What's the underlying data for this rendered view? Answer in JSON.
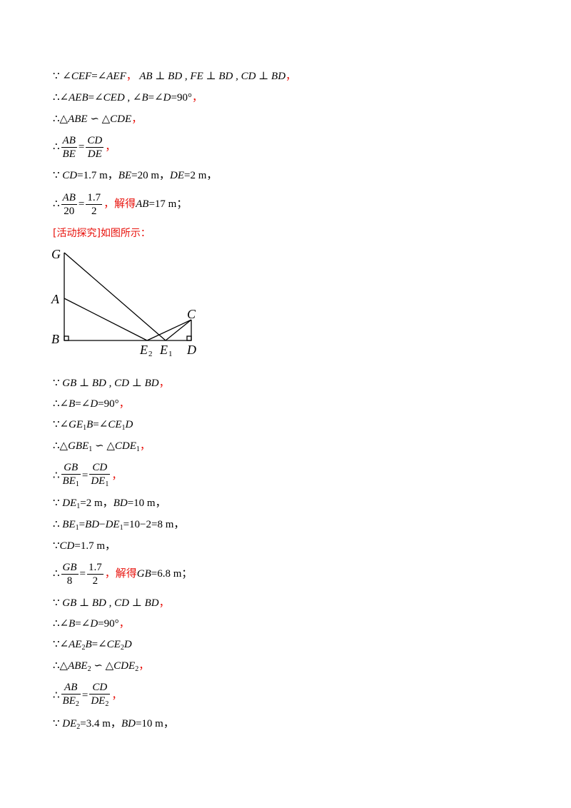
{
  "sec1": {
    "l1": {
      "a": "∵ ",
      "b": "∠CEF",
      "c": "=",
      "d": "∠AEF",
      "e": "，",
      "f": " AB ⊥ BD , FE ⊥ BD , CD ⊥ BD",
      "g": "，"
    },
    "l2": {
      "a": "∴",
      "b": "∠AEB",
      "c": "=",
      "d": "∠CED",
      "e": " , ",
      "f": "∠B",
      "g": "=",
      "h": "∠D",
      "i": "=90°",
      "j": "，"
    },
    "l3": {
      "a": "∴",
      "b": "△ABE ∽ △CDE",
      "c": "，"
    },
    "l4": {
      "a": "∴",
      "n1": "AB",
      "d1": "BE",
      "eq": "=",
      "n2": "CD",
      "d2": "DE",
      "c": "，"
    },
    "l5": {
      "a": "∵ ",
      "b": "CD",
      "c": "=1.7 m，",
      "d": "BE",
      "e": "=20 m，",
      "f": "DE",
      "g": "=2 m，"
    },
    "l6": {
      "a": "∴",
      "n1": "AB",
      "d1": "20",
      "eq": "=",
      "n2": "1.7",
      "d2": "2",
      "c": "，解得",
      "d": "AB",
      "e": "=17 m；"
    }
  },
  "heading": "[活动探究]如图所示：",
  "figure": {
    "labels": {
      "G": "G",
      "A": "A",
      "B": "B",
      "C": "C",
      "D": "D",
      "E2": "E",
      "E2sub": "2",
      "E1": "E",
      "E1sub": "1"
    }
  },
  "sec2": {
    "l1": {
      "a": "∵ ",
      "b": "GB ⊥ BD , CD ⊥ BD",
      "c": "，"
    },
    "l2": {
      "a": "∴",
      "b": "∠B",
      "c": "=",
      "d": "∠D",
      "e": "=90°",
      "f": "，"
    },
    "l3": {
      "a": "∵",
      "b": "∠GE",
      "s1": "1",
      "c": "B",
      "d": "=",
      "e": "∠CE",
      "s2": "1",
      "f": "D"
    },
    "l4": {
      "a": "∴",
      "b": "△GBE",
      "s1": "1",
      "c": " ∽ △CDE",
      "s2": "1",
      "d": "，"
    },
    "l5": {
      "a": "∴",
      "n1": "GB",
      "d1": "BE",
      "s1": "1",
      "eq": "=",
      "n2": "CD",
      "d2": "DE",
      "s2": "1",
      "c": "，"
    },
    "l6": {
      "a": "∵ ",
      "b": "DE",
      "s1": "1",
      "c": "=2 m，",
      "d": "BD",
      "e": "=10 m，"
    },
    "l7": {
      "a": "∴ ",
      "b": "BE",
      "s1": "1",
      "c": "=",
      "d": "BD",
      "e": "−",
      "f": "DE",
      "s2": "1",
      "g": "=10−2=8 m，"
    },
    "l8": {
      "a": "∵",
      "b": "CD",
      "c": "=1.7 m，"
    },
    "l9": {
      "a": "∴",
      "n1": "GB",
      "d1": "8",
      "eq": "=",
      "n2": "1.7",
      "d2": "2",
      "c": "，解得",
      "d": "GB",
      "e": "=6.8 m；"
    },
    "l10": {
      "a": "∵ ",
      "b": "GB ⊥ BD , CD ⊥ BD",
      "c": "，"
    },
    "l11": {
      "a": "∴",
      "b": "∠B",
      "c": "=",
      "d": "∠D",
      "e": "=90°",
      "f": "，"
    },
    "l12": {
      "a": "∵",
      "b": "∠AE",
      "s1": "2",
      "c": "B",
      "d": "=",
      "e": "∠CE",
      "s2": "2",
      "f": "D"
    },
    "l13": {
      "a": "∴",
      "b": "△ABE",
      "s1": "2",
      "c": " ∽ △CDE",
      "s2": "2",
      "d": "，"
    },
    "l14": {
      "a": "∴",
      "n1": "AB",
      "d1": "BE",
      "s1": "2",
      "eq": "=",
      "n2": "CD",
      "d2": "DE",
      "s2": "2",
      "c": "，"
    },
    "l15": {
      "a": "∵ ",
      "b": "DE",
      "s1": "2",
      "c": "=3.4 m，",
      "d": "BD",
      "e": "=10 m，"
    }
  }
}
